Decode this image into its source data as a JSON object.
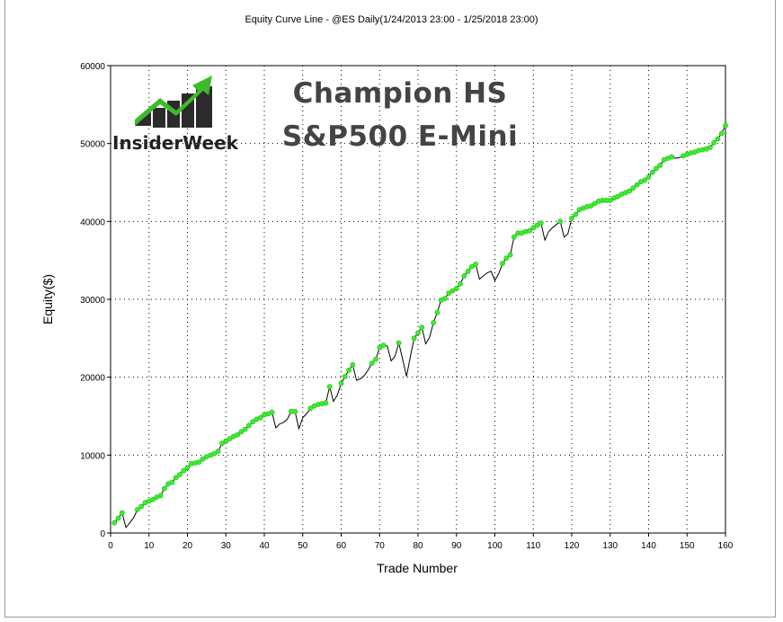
{
  "header": {
    "title": "Equity Curve Line - @ES Daily(1/24/2013 23:00 - 1/25/2018 23:00)"
  },
  "overlay": {
    "line1": "Champion HS",
    "line2": "S&P500 E-Mini",
    "logo_text": "InsiderWeek"
  },
  "colors": {
    "axis": "#000000",
    "grid": "#000000",
    "line": "#000000",
    "marker": "#39f02c",
    "marker_edge": "#22b81a",
    "logo_dark": "#222222",
    "logo_green": "#3dbb2a"
  },
  "chart_data": {
    "type": "line",
    "xlabel": "Trade Number",
    "ylabel": "Equity($)",
    "xlim": [
      0,
      160
    ],
    "ylim": [
      0,
      60000
    ],
    "xticks": [
      "0",
      "10",
      "20",
      "30",
      "40",
      "50",
      "60",
      "70",
      "80",
      "90",
      "100",
      "110",
      "120",
      "130",
      "140",
      "150",
      "160"
    ],
    "yticks": [
      "0",
      "10000",
      "20000",
      "30000",
      "40000",
      "50000",
      "60000"
    ],
    "grid": true,
    "series": [
      {
        "x": [
          1,
          2,
          3,
          4,
          5,
          6,
          7,
          8,
          9,
          10,
          11,
          12,
          13,
          14,
          15,
          16,
          17,
          18,
          19,
          20,
          21,
          22,
          23,
          24,
          25,
          26,
          27,
          28,
          29,
          30,
          31,
          32,
          33,
          34,
          35,
          36,
          37,
          38,
          39,
          40,
          41,
          42,
          43,
          44,
          45,
          46,
          47,
          48,
          49,
          50,
          51,
          52,
          53,
          54,
          55,
          56,
          57,
          58,
          59,
          60,
          61,
          62,
          63,
          64,
          65,
          66,
          67,
          68,
          69,
          70,
          71,
          72,
          73,
          74,
          75,
          76,
          77,
          78,
          79,
          80,
          81,
          82,
          83,
          84,
          85,
          86,
          87,
          88,
          89,
          90,
          91,
          92,
          93,
          94,
          95,
          96,
          97,
          98,
          99,
          100,
          101,
          102,
          103,
          104,
          105,
          106,
          107,
          108,
          109,
          110,
          111,
          112,
          113,
          114,
          115,
          116,
          117,
          118,
          119,
          120,
          121,
          122,
          123,
          124,
          125,
          126,
          127,
          128,
          129,
          130,
          131,
          132,
          133,
          134,
          135,
          136,
          137,
          138,
          139,
          140,
          141,
          142,
          143,
          144,
          145,
          146,
          147,
          148,
          149,
          150,
          151,
          152,
          153,
          154,
          155,
          156,
          157,
          158,
          159,
          160
        ],
        "y": [
          1300,
          1900,
          2600,
          700,
          1300,
          2000,
          3000,
          3400,
          3900,
          4100,
          4300,
          4600,
          4800,
          5700,
          6300,
          6500,
          7100,
          7500,
          8000,
          8400,
          8900,
          9000,
          9100,
          9500,
          9800,
          10000,
          10200,
          10500,
          11500,
          11800,
          12100,
          12400,
          12600,
          13000,
          13300,
          13800,
          14300,
          14600,
          14800,
          15200,
          15300,
          15500,
          13500,
          14000,
          14200,
          14600,
          15600,
          15600,
          13400,
          14800,
          15300,
          16000,
          16300,
          16500,
          16600,
          16700,
          18800,
          16900,
          17700,
          19200,
          20100,
          20900,
          21600,
          19600,
          19800,
          20200,
          20900,
          21800,
          22300,
          23800,
          24100,
          24000,
          22100,
          22700,
          24400,
          22300,
          20100,
          22600,
          25000,
          25700,
          26400,
          24300,
          25100,
          27000,
          28300,
          29900,
          30100,
          30800,
          31100,
          31400,
          32000,
          33000,
          33600,
          34200,
          34500,
          32600,
          33000,
          33400,
          33600,
          32400,
          33300,
          34600,
          35300,
          35700,
          38000,
          38500,
          38500,
          38700,
          38800,
          39200,
          39500,
          39800,
          37600,
          38700,
          39200,
          39600,
          40000,
          38000,
          38400,
          40400,
          40900,
          41500,
          41700,
          41900,
          42000,
          42300,
          42600,
          42700,
          42700,
          42700,
          43000,
          43200,
          43500,
          43700,
          43900,
          44300,
          44700,
          45100,
          45300,
          45700,
          46300,
          46800,
          47200,
          47900,
          48100,
          48300,
          48100,
          48200,
          48400,
          48600,
          48800,
          48900,
          49100,
          49200,
          49300,
          49500,
          50100,
          50600,
          51300,
          52300
        ]
      }
    ]
  }
}
